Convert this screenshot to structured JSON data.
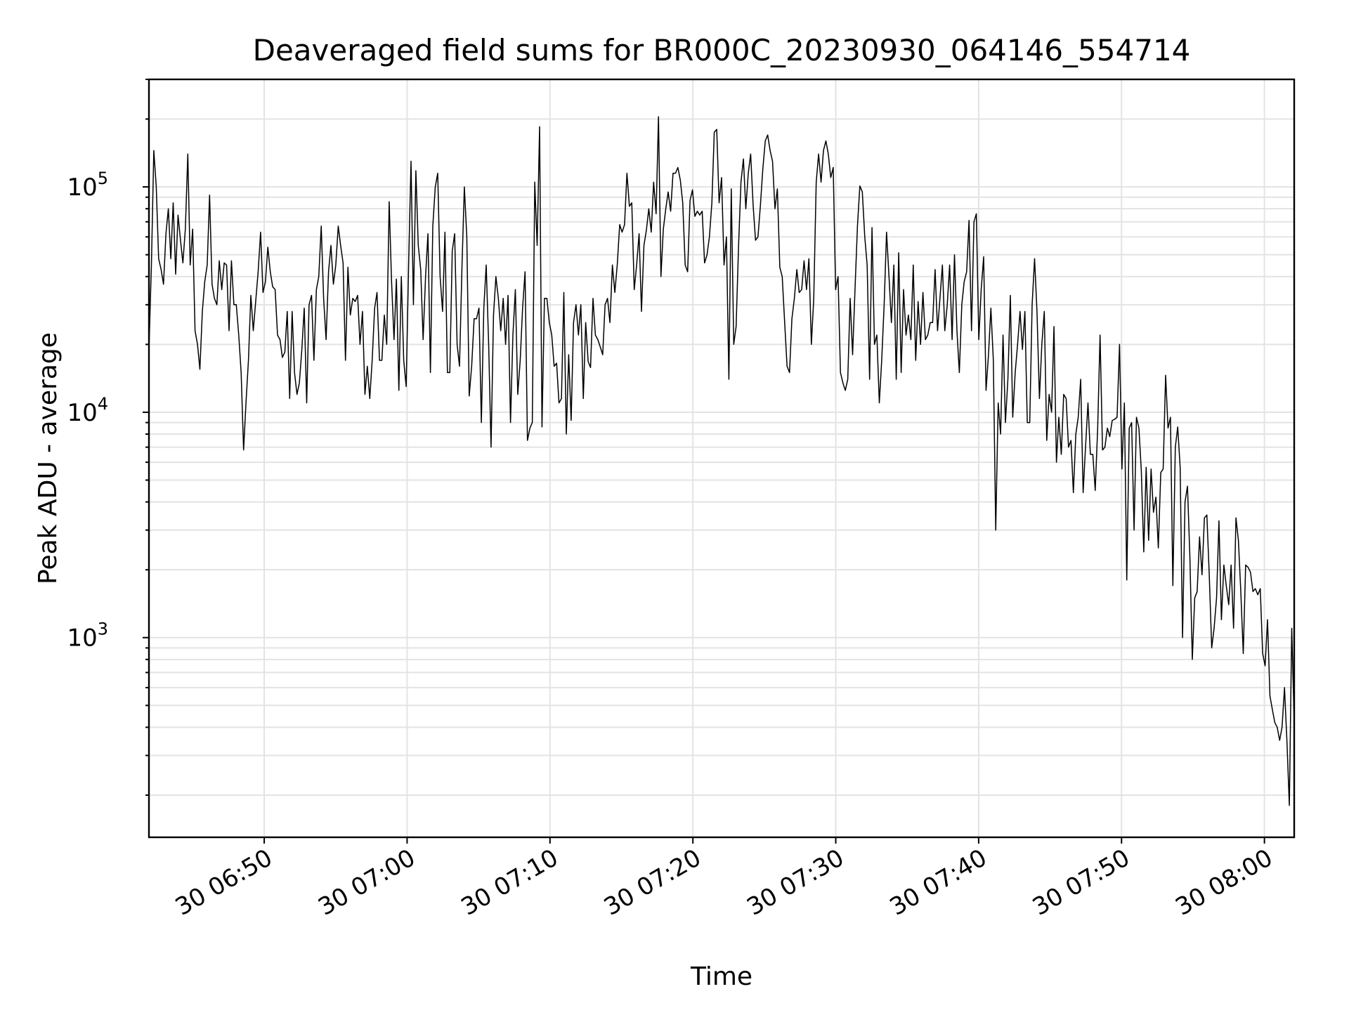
{
  "chart_data": {
    "type": "line",
    "title": "Deaveraged field sums for BR000C_20230930_064146_554714",
    "xlabel": "Time",
    "ylabel": "Peak ADU - average",
    "yscale": "log",
    "ylim": [
      130,
      300000
    ],
    "xlim": [
      "2023-09-30 06:41:56",
      "2023-09-30 08:02:05"
    ],
    "grid": true,
    "x_tick_labels": [
      "30 06:50",
      "30 07:00",
      "30 07:10",
      "30 07:20",
      "30 07:30",
      "30 07:40",
      "30 07:50",
      "30 08:00"
    ],
    "x_ticks": [
      "2023-09-30 06:50:00",
      "2023-09-30 07:00:00",
      "2023-09-30 07:10:00",
      "2023-09-30 07:20:00",
      "2023-09-30 07:30:00",
      "2023-09-30 07:40:00",
      "2023-09-30 07:50:00",
      "2023-09-30 08:00:00"
    ],
    "y_tick_labels": [
      {
        "base": "10",
        "exp": "3",
        "value": 1000
      },
      {
        "base": "10",
        "exp": "4",
        "value": 10000
      },
      {
        "base": "10",
        "exp": "5",
        "value": 100000
      }
    ],
    "x_start": "2023-09-30 06:41:56",
    "x_end": "2023-09-30 08:02:05",
    "values": [
      19000,
      45000,
      145000,
      100000,
      48000,
      43000,
      37000,
      62000,
      80000,
      48000,
      85000,
      41000,
      75000,
      58000,
      46000,
      65000,
      140000,
      45000,
      65000,
      23000,
      20000,
      15500,
      28000,
      38000,
      45000,
      92000,
      37000,
      32000,
      30000,
      47000,
      35000,
      46000,
      45000,
      23000,
      47000,
      30000,
      30000,
      22000,
      15000,
      6800,
      11000,
      17000,
      33000,
      23000,
      31000,
      42000,
      63000,
      34000,
      38000,
      54000,
      42000,
      36000,
      35000,
      22000,
      21000,
      17500,
      18500,
      28000,
      11500,
      28000,
      15000,
      12000,
      13500,
      19000,
      29000,
      11000,
      30000,
      33000,
      17000,
      35000,
      40000,
      67000,
      32000,
      21000,
      42000,
      55000,
      37000,
      45000,
      67000,
      55000,
      46000,
      17000,
      44000,
      27000,
      32000,
      31000,
      33000,
      20000,
      28000,
      12000,
      16000,
      11500,
      17000,
      29000,
      34000,
      17000,
      17000,
      27000,
      20000,
      86000,
      38000,
      21000,
      39000,
      12500,
      40000,
      17000,
      13000,
      44000,
      130000,
      30000,
      118000,
      55000,
      43000,
      21000,
      40000,
      62000,
      15000,
      67000,
      100000,
      115000,
      40000,
      28000,
      63000,
      15000,
      15000,
      52000,
      62000,
      20000,
      16000,
      44000,
      100000,
      60000,
      11800,
      16000,
      26000,
      26000,
      29000,
      9000,
      29000,
      45000,
      20000,
      7000,
      27000,
      40000,
      32000,
      23000,
      32000,
      20000,
      33000,
      9000,
      22000,
      35000,
      12000,
      17000,
      29000,
      42000,
      7500,
      8500,
      9000,
      105000,
      55000,
      185000,
      8600,
      32000,
      32000,
      25000,
      22000,
      16000,
      16500,
      11000,
      11500,
      34000,
      8000,
      18000,
      9200,
      25000,
      30000,
      22000,
      30000,
      11500,
      25000,
      16800,
      15800,
      32000,
      22000,
      21000,
      19500,
      18000,
      30000,
      32000,
      25000,
      45000,
      34000,
      45000,
      68000,
      63000,
      68000,
      115000,
      82000,
      85000,
      35000,
      45000,
      62000,
      28000,
      55000,
      64000,
      80000,
      63000,
      105000,
      76000,
      205000,
      40000,
      65000,
      80000,
      95000,
      78000,
      115000,
      115000,
      122000,
      107000,
      85000,
      45000,
      42000,
      87000,
      97000,
      74000,
      78000,
      75000,
      78000,
      46000,
      50000,
      60000,
      85000,
      175000,
      180000,
      85000,
      110000,
      45000,
      60000,
      14000,
      98000,
      20000,
      24000,
      55000,
      105000,
      133000,
      80000,
      115000,
      140000,
      83000,
      58000,
      60000,
      83000,
      120000,
      160000,
      170000,
      145000,
      130000,
      80000,
      98000,
      44000,
      40000,
      25000,
      16000,
      15000,
      26000,
      32000,
      43000,
      34000,
      35000,
      47000,
      35000,
      48000,
      20000,
      32000,
      105000,
      140000,
      105000,
      145000,
      160000,
      140000,
      110000,
      122000,
      35000,
      40000,
      15000,
      13500,
      12500,
      14000,
      32000,
      18000,
      35000,
      67000,
      101000,
      95000,
      60000,
      45000,
      14000,
      66000,
      20000,
      22000,
      11000,
      17000,
      30000,
      63000,
      40000,
      25000,
      45000,
      14000,
      51000,
      15000,
      35000,
      22000,
      27000,
      21000,
      45000,
      17000,
      31000,
      20000,
      34000,
      21000,
      22000,
      25000,
      25000,
      43000,
      23000,
      32000,
      45000,
      23000,
      30000,
      45000,
      21000,
      50000,
      23000,
      15000,
      30000,
      38000,
      42000,
      71000,
      23000,
      70000,
      76000,
      21000,
      35000,
      49000,
      12500,
      18000,
      29000,
      17000,
      3000,
      11000,
      8000,
      22000,
      9000,
      14000,
      33000,
      9500,
      15000,
      20000,
      28000,
      19000,
      28000,
      9000,
      9000,
      30000,
      48000,
      28000,
      11500,
      20000,
      28000,
      7500,
      12000,
      10000,
      24000,
      6000,
      9500,
      6500,
      12000,
      11500,
      7000,
      7500,
      4400,
      8000,
      9500,
      14000,
      4400,
      7000,
      11000,
      6500,
      6500,
      4500,
      8500,
      22000,
      6800,
      7000,
      8500,
      7800,
      9200,
      9300,
      9500,
      20000,
      5600,
      11000,
      1800,
      8500,
      9000,
      3000,
      9500,
      8500,
      5500,
      2400,
      5700,
      2700,
      5600,
      3600,
      4200,
      2500,
      5400,
      5600,
      14600,
      8500,
      9500,
      1700,
      7000,
      8600,
      5700,
      1000,
      4000,
      4700,
      2300,
      800,
      1500,
      1600,
      2800,
      1900,
      3400,
      3500,
      1900,
      900,
      1100,
      1500,
      3300,
      1200,
      2100,
      1700,
      1400,
      2100,
      1100,
      3400,
      2700,
      1600,
      850,
      2100,
      2050,
      1950,
      1600,
      1650,
      1550,
      1650,
      850,
      750,
      1200,
      550,
      480,
      420,
      400,
      350,
      400,
      600,
      350,
      180,
      1100,
      420
    ]
  }
}
